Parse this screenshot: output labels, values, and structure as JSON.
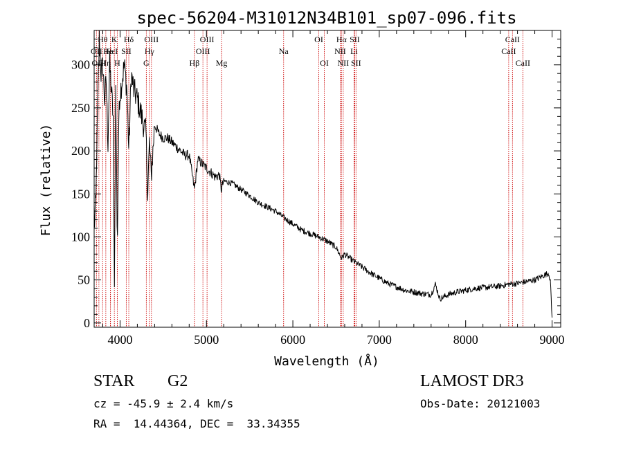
{
  "chart_data": {
    "type": "line",
    "title": "spec-56204-M31012N34B101_sp07-096.fits",
    "xlabel": "Wavelength (Å)",
    "ylabel": "Flux (relative)",
    "xlim": [
      3700,
      9100
    ],
    "ylim": [
      -5,
      340
    ],
    "x_ticks": [
      4000,
      5000,
      6000,
      7000,
      8000,
      9000
    ],
    "y_ticks": [
      0,
      50,
      100,
      150,
      200,
      250,
      300
    ],
    "series": [
      {
        "name": "spectrum",
        "x": [
          3700,
          3720,
          3740,
          3760,
          3780,
          3800,
          3820,
          3840,
          3860,
          3880,
          3900,
          3920,
          3934,
          3950,
          3968,
          3990,
          4020,
          4050,
          4080,
          4101,
          4130,
          4160,
          4200,
          4250,
          4300,
          4320,
          4340,
          4360,
          4400,
          4450,
          4500,
          4550,
          4600,
          4650,
          4700,
          4750,
          4800,
          4861,
          4900,
          4950,
          5000,
          5050,
          5100,
          5150,
          5170,
          5200,
          5300,
          5400,
          5500,
          5600,
          5700,
          5800,
          5900,
          6000,
          6100,
          6200,
          6300,
          6400,
          6500,
          6563,
          6600,
          6700,
          6800,
          6900,
          7000,
          7100,
          7200,
          7300,
          7400,
          7500,
          7600,
          7650,
          7700,
          7800,
          7900,
          8000,
          8100,
          8200,
          8300,
          8400,
          8500,
          8600,
          8700,
          8800,
          8900,
          8960,
          8980,
          9000
        ],
        "y": [
          110,
          140,
          250,
          330,
          290,
          300,
          260,
          280,
          210,
          300,
          270,
          240,
          40,
          270,
          90,
          260,
          280,
          300,
          270,
          200,
          290,
          270,
          260,
          240,
          220,
          150,
          210,
          170,
          230,
          220,
          215,
          215,
          210,
          205,
          200,
          195,
          195,
          155,
          190,
          185,
          180,
          175,
          170,
          172,
          155,
          165,
          162,
          155,
          148,
          140,
          135,
          130,
          122,
          115,
          108,
          104,
          100,
          95,
          88,
          75,
          80,
          72,
          65,
          58,
          52,
          46,
          42,
          38,
          36,
          34,
          33,
          45,
          28,
          33,
          36,
          38,
          40,
          41,
          42,
          43,
          45,
          46,
          48,
          50,
          55,
          58,
          50,
          5
        ]
      }
    ],
    "spectral_lines": [
      {
        "label": "Hθ",
        "wavelength": 3798,
        "row": 1
      },
      {
        "label": "OII",
        "wavelength": 3727,
        "row": 2
      },
      {
        "label": "OIII",
        "wavelength": 3755,
        "row": 3
      },
      {
        "label": "Hε",
        "wavelength": 3889,
        "row": 2
      },
      {
        "label": "Hη",
        "wavelength": 3835,
        "row": 3
      },
      {
        "label": "K",
        "wavelength": 3934,
        "row": 1
      },
      {
        "label": "He I",
        "wavelength": 3889,
        "row": 2
      },
      {
        "label": "H",
        "wavelength": 3968,
        "row": 3
      },
      {
        "label": "Hδ",
        "wavelength": 4101,
        "row": 1
      },
      {
        "label": "SII",
        "wavelength": 4072,
        "row": 2
      },
      {
        "label": "OIII",
        "wavelength": 4363,
        "row": 1
      },
      {
        "label": "Hγ",
        "wavelength": 4340,
        "row": 2
      },
      {
        "label": "G",
        "wavelength": 4304,
        "row": 3
      },
      {
        "label": "Hβ",
        "wavelength": 4861,
        "row": 3
      },
      {
        "label": "OIII",
        "wavelength": 5007,
        "row": 1
      },
      {
        "label": "OIII",
        "wavelength": 4959,
        "row": 2
      },
      {
        "label": "Mg",
        "wavelength": 5175,
        "row": 3
      },
      {
        "label": "Na",
        "wavelength": 5893,
        "row": 2
      },
      {
        "label": "OI",
        "wavelength": 6300,
        "row": 1
      },
      {
        "label": "OI",
        "wavelength": 6364,
        "row": 3
      },
      {
        "label": "Hα",
        "wavelength": 6563,
        "row": 1
      },
      {
        "label": "NII",
        "wavelength": 6548,
        "row": 2
      },
      {
        "label": "NII",
        "wavelength": 6583,
        "row": 3
      },
      {
        "label": "SII",
        "wavelength": 6716,
        "row": 1
      },
      {
        "label": "Li",
        "wavelength": 6708,
        "row": 2
      },
      {
        "label": "SII",
        "wavelength": 6731,
        "row": 3
      },
      {
        "label": "CaII",
        "wavelength": 8542,
        "row": 1
      },
      {
        "label": "CaII",
        "wavelength": 8498,
        "row": 2
      },
      {
        "label": "CaII",
        "wavelength": 8662,
        "row": 3
      }
    ]
  },
  "info": {
    "object_class": "STAR",
    "subclass": "G2",
    "survey": "LAMOST DR3",
    "redshift_text": "cz = -45.9 ± 2.4 km/s",
    "obs_date_text": "Obs-Date: 20121003",
    "coords_text": "RA =  14.44364, DEC =  33.34355"
  }
}
